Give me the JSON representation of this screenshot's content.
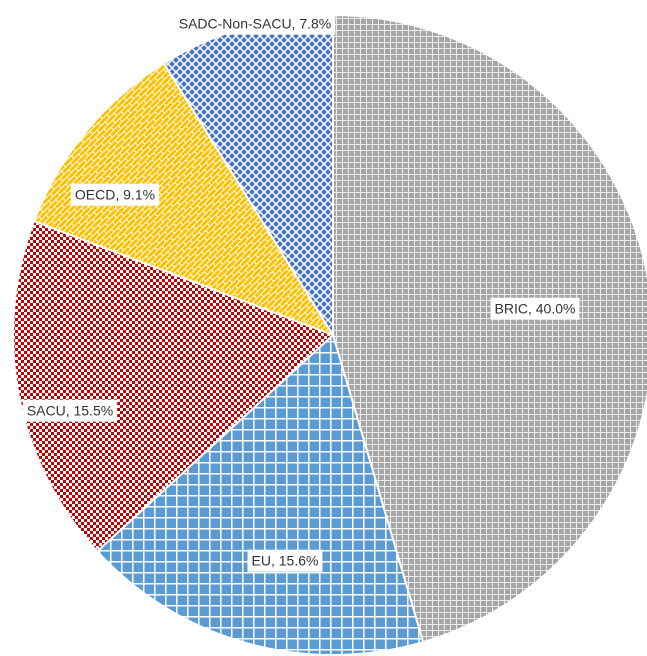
{
  "chart_data": {
    "type": "pie",
    "values": [
      40.0,
      15.6,
      15.5,
      9.1,
      7.8
    ],
    "value_labels": [
      "BRIC, 40.0%",
      "EU, 15.6%",
      "SACU, 15.5%",
      "OECD, 9.1%",
      "SADC-Non-SACU, 7.8%"
    ],
    "colors": [
      "#a5a5a5",
      "#5b9bd5",
      "#c00000",
      "#ffc000",
      "#4472c4"
    ]
  }
}
